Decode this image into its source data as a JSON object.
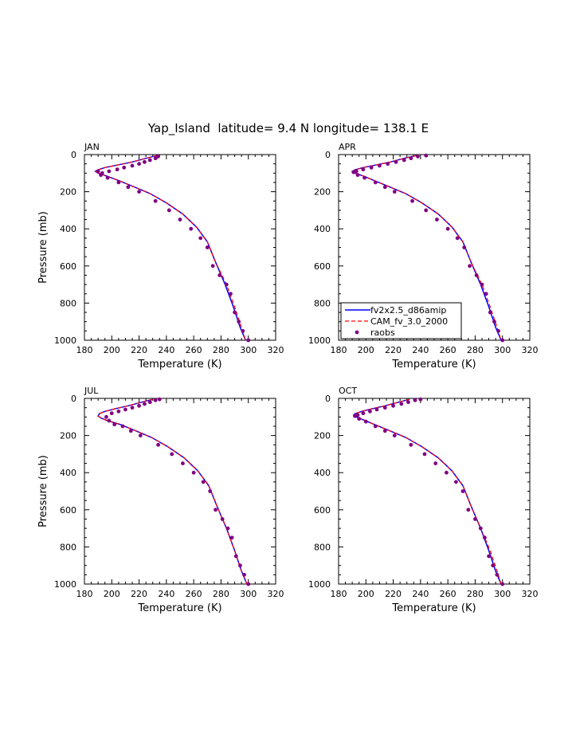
{
  "figure": {
    "title": "Yap_Island  latitude= 9.4 N longitude= 138.1 E"
  },
  "colors": {
    "model1": "#0000ff",
    "model2": "#ff0000",
    "obs": "#800080",
    "axis": "#000000"
  },
  "chart_data": [
    {
      "type": "line",
      "panel_label": "JAN",
      "xlabel": "Temperature (K)",
      "ylabel": "Pressure (mb)",
      "xlim": [
        180,
        320
      ],
      "ylim": [
        1000,
        0
      ],
      "xticks": [
        180,
        200,
        220,
        240,
        260,
        280,
        300,
        320
      ],
      "yticks": [
        0,
        200,
        400,
        600,
        800,
        1000
      ],
      "legend": null,
      "series": [
        {
          "name": "fv2x2.5_d86amip",
          "kind": "line",
          "color": "#0000ff",
          "x": [
            233,
            225,
            215,
            205,
            195,
            190,
            188,
            190,
            196,
            205,
            215,
            228,
            240,
            252,
            262,
            270,
            276,
            283,
            289,
            294,
            298
          ],
          "y": [
            5,
            20,
            40,
            55,
            70,
            82,
            90,
            100,
            115,
            140,
            170,
            210,
            260,
            320,
            390,
            470,
            580,
            700,
            820,
            930,
            1000
          ]
        },
        {
          "name": "CAM_fv_3.0_2000",
          "kind": "dashed",
          "color": "#ff0000",
          "x": [
            233,
            225,
            215,
            205,
            195,
            190,
            188,
            190,
            196,
            205,
            215,
            228,
            240,
            252,
            262,
            270,
            276,
            284,
            290,
            295,
            298
          ],
          "y": [
            5,
            20,
            40,
            55,
            70,
            82,
            90,
            100,
            115,
            140,
            170,
            210,
            260,
            320,
            390,
            470,
            580,
            700,
            820,
            930,
            1000
          ]
        },
        {
          "name": "raobs",
          "kind": "dots",
          "color": "#800080",
          "x": [
            234,
            232,
            228,
            224,
            220,
            215,
            209,
            204,
            198,
            193,
            190,
            192,
            197,
            205,
            212,
            220,
            232,
            242,
            250,
            258,
            265,
            270,
            274,
            279,
            284,
            287,
            290,
            293,
            296,
            300
          ],
          "y": [
            10,
            20,
            30,
            40,
            50,
            60,
            70,
            80,
            90,
            100,
            90,
            110,
            125,
            150,
            175,
            200,
            250,
            300,
            350,
            400,
            450,
            500,
            600,
            650,
            700,
            750,
            850,
            900,
            950,
            1000
          ]
        }
      ]
    },
    {
      "type": "line",
      "panel_label": "APR",
      "xlabel": "Temperature (K)",
      "ylabel": "",
      "xlim": [
        180,
        320
      ],
      "ylim": [
        1000,
        0
      ],
      "xticks": [
        180,
        200,
        220,
        240,
        260,
        280,
        300,
        320
      ],
      "yticks": [
        0,
        200,
        400,
        600,
        800,
        1000
      ],
      "legend": "bottom-left",
      "series": [
        {
          "name": "fv2x2.5_d86amip",
          "kind": "line",
          "color": "#0000ff",
          "x": [
            237,
            228,
            218,
            208,
            198,
            192,
            190,
            192,
            198,
            206,
            216,
            229,
            241,
            253,
            263,
            271,
            277,
            284,
            290,
            295,
            299
          ],
          "y": [
            5,
            20,
            40,
            55,
            70,
            82,
            90,
            100,
            115,
            140,
            170,
            210,
            260,
            320,
            390,
            470,
            580,
            700,
            820,
            930,
            1000
          ]
        },
        {
          "name": "CAM_fv_3.0_2000",
          "kind": "dashed",
          "color": "#ff0000",
          "x": [
            237,
            228,
            218,
            208,
            198,
            192,
            190,
            192,
            198,
            206,
            216,
            229,
            241,
            253,
            263,
            271,
            277,
            285,
            291,
            296,
            299
          ],
          "y": [
            5,
            20,
            40,
            55,
            70,
            82,
            90,
            100,
            115,
            140,
            170,
            210,
            260,
            320,
            390,
            470,
            580,
            700,
            820,
            930,
            1000
          ]
        },
        {
          "name": "raobs",
          "kind": "dots",
          "color": "#800080",
          "x": [
            244,
            238,
            233,
            228,
            222,
            216,
            210,
            204,
            198,
            193,
            191,
            194,
            199,
            207,
            214,
            221,
            234,
            244,
            252,
            260,
            267,
            272,
            276,
            281,
            285,
            288,
            291,
            294,
            297,
            300
          ],
          "y": [
            5,
            10,
            20,
            30,
            40,
            50,
            60,
            70,
            80,
            90,
            95,
            110,
            125,
            150,
            175,
            200,
            250,
            300,
            350,
            400,
            450,
            500,
            600,
            650,
            700,
            750,
            850,
            900,
            950,
            1000
          ]
        }
      ]
    },
    {
      "type": "line",
      "panel_label": "JUL",
      "xlabel": "Temperature (K)",
      "ylabel": "Pressure (mb)",
      "xlim": [
        180,
        320
      ],
      "ylim": [
        1000,
        0
      ],
      "xticks": [
        180,
        200,
        220,
        240,
        260,
        280,
        300,
        320
      ],
      "yticks": [
        0,
        200,
        400,
        600,
        800,
        1000
      ],
      "legend": null,
      "series": [
        {
          "name": "fv2x2.5_d86amip",
          "kind": "line",
          "color": "#0000ff",
          "x": [
            230,
            222,
            212,
            203,
            195,
            191,
            190,
            192,
            197,
            206,
            216,
            229,
            241,
            253,
            263,
            271,
            277,
            284,
            290,
            295,
            299
          ],
          "y": [
            5,
            20,
            40,
            55,
            70,
            82,
            95,
            105,
            120,
            140,
            170,
            210,
            260,
            320,
            390,
            470,
            580,
            700,
            820,
            930,
            1000
          ]
        },
        {
          "name": "CAM_fv_3.0_2000",
          "kind": "dashed",
          "color": "#ff0000",
          "x": [
            230,
            222,
            212,
            203,
            195,
            191,
            190,
            192,
            197,
            206,
            216,
            229,
            241,
            253,
            263,
            271,
            277,
            284,
            290,
            295,
            299
          ],
          "y": [
            5,
            20,
            40,
            55,
            70,
            82,
            95,
            105,
            120,
            140,
            170,
            210,
            260,
            320,
            390,
            470,
            580,
            700,
            820,
            930,
            1000
          ]
        },
        {
          "name": "raobs",
          "kind": "dots",
          "color": "#800080",
          "x": [
            235,
            232,
            228,
            224,
            220,
            215,
            210,
            205,
            200,
            196,
            198,
            202,
            208,
            214,
            221,
            234,
            244,
            252,
            260,
            267,
            272,
            276,
            281,
            285,
            288,
            291,
            294,
            297,
            300
          ],
          "y": [
            5,
            10,
            20,
            30,
            40,
            50,
            60,
            70,
            80,
            100,
            120,
            140,
            150,
            175,
            200,
            250,
            300,
            350,
            400,
            450,
            500,
            600,
            650,
            700,
            750,
            850,
            900,
            950,
            1000
          ]
        }
      ]
    },
    {
      "type": "line",
      "panel_label": "OCT",
      "xlabel": "Temperature (K)",
      "ylabel": "",
      "xlim": [
        180,
        320
      ],
      "ylim": [
        1000,
        0
      ],
      "xticks": [
        180,
        200,
        220,
        240,
        260,
        280,
        300,
        320
      ],
      "yticks": [
        0,
        200,
        400,
        600,
        800,
        1000
      ],
      "legend": null,
      "series": [
        {
          "name": "fv2x2.5_d86amip",
          "kind": "line",
          "color": "#0000ff",
          "x": [
            232,
            224,
            214,
            205,
            197,
            192,
            191,
            193,
            198,
            206,
            216,
            229,
            241,
            253,
            263,
            271,
            277,
            284,
            290,
            295,
            299
          ],
          "y": [
            5,
            20,
            40,
            55,
            70,
            82,
            90,
            100,
            115,
            140,
            170,
            210,
            260,
            320,
            390,
            470,
            580,
            700,
            820,
            930,
            1000
          ]
        },
        {
          "name": "CAM_fv_3.0_2000",
          "kind": "dashed",
          "color": "#ff0000",
          "x": [
            232,
            224,
            214,
            205,
            197,
            192,
            191,
            193,
            198,
            206,
            216,
            229,
            241,
            253,
            263,
            271,
            277,
            284,
            291,
            296,
            299
          ],
          "y": [
            5,
            20,
            40,
            55,
            70,
            82,
            90,
            100,
            115,
            140,
            170,
            210,
            260,
            320,
            390,
            470,
            580,
            700,
            820,
            930,
            1000
          ]
        },
        {
          "name": "raobs",
          "kind": "dots",
          "color": "#800080",
          "x": [
            240,
            236,
            231,
            226,
            220,
            214,
            208,
            203,
            198,
            194,
            192,
            195,
            200,
            207,
            214,
            221,
            233,
            243,
            251,
            259,
            266,
            271,
            275,
            280,
            284,
            287,
            290,
            293,
            296,
            300
          ],
          "y": [
            5,
            10,
            20,
            30,
            40,
            50,
            60,
            70,
            80,
            90,
            95,
            110,
            125,
            150,
            175,
            200,
            250,
            300,
            350,
            400,
            450,
            500,
            600,
            650,
            700,
            750,
            850,
            900,
            950,
            1000
          ]
        }
      ]
    }
  ]
}
